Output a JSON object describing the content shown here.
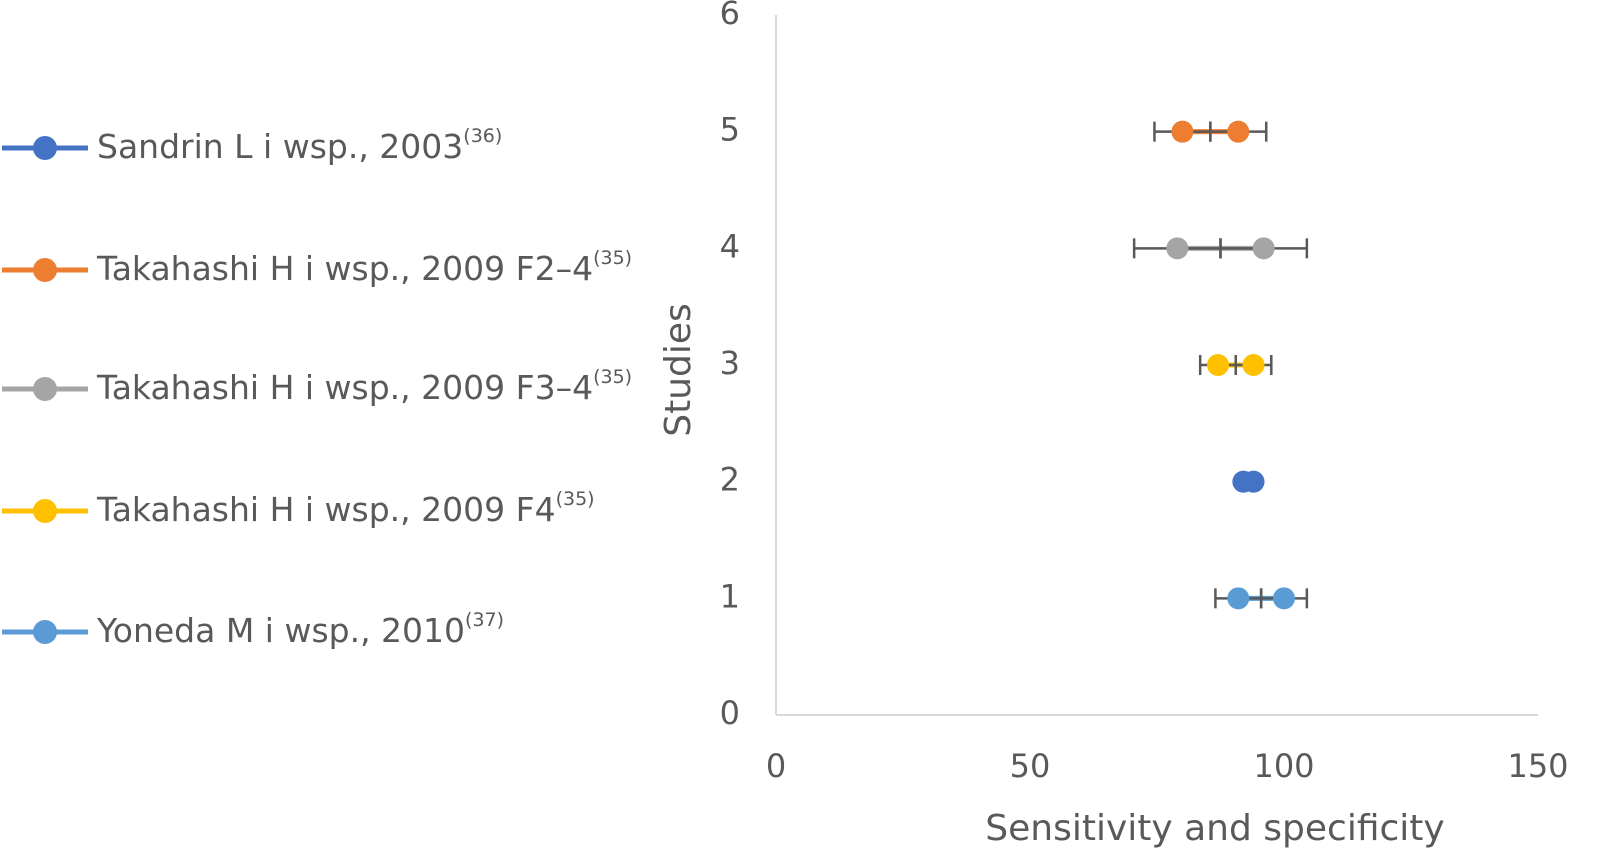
{
  "chart_data": {
    "type": "scatter",
    "xlabel": "Sensitivity and specificity",
    "ylabel": "Studies",
    "xlim": [
      0,
      150
    ],
    "xticks": [
      0,
      50,
      100,
      150
    ],
    "ylim": [
      0,
      6
    ],
    "yticks": [
      0,
      1,
      2,
      3,
      4,
      5,
      6
    ],
    "grid": false,
    "legend": "left",
    "series": [
      {
        "name": "Sandrin L i wsp., 2003",
        "reference": "(36)",
        "color": "#4472c4",
        "x": [
          92,
          94
        ],
        "y": [
          2,
          2
        ]
      },
      {
        "name": "Takahashi H i wsp., 2009 F2–4",
        "reference": "(35)",
        "color": "#ed7d31",
        "x": [
          80,
          91
        ],
        "y": [
          5,
          5
        ],
        "xerr": [
          5.5,
          5.5
        ]
      },
      {
        "name": "Takahashi H i wsp., 2009 F3–4",
        "reference": "(35)",
        "color": "#a5a5a5",
        "x": [
          79,
          96
        ],
        "y": [
          4,
          4
        ],
        "xerr": [
          8.5,
          8.5
        ]
      },
      {
        "name": "Takahashi H i wsp., 2009 F4",
        "reference": "(35)",
        "color": "#ffc000",
        "x": [
          87,
          94
        ],
        "y": [
          3,
          3
        ],
        "xerr": [
          3.5,
          3.5
        ]
      },
      {
        "name": "Yoneda M i wsp., 2010",
        "reference": "(37)",
        "color": "#5b9bd5",
        "x": [
          91,
          100
        ],
        "y": [
          1,
          1
        ],
        "xerr": [
          4.5,
          4.5
        ]
      }
    ]
  }
}
